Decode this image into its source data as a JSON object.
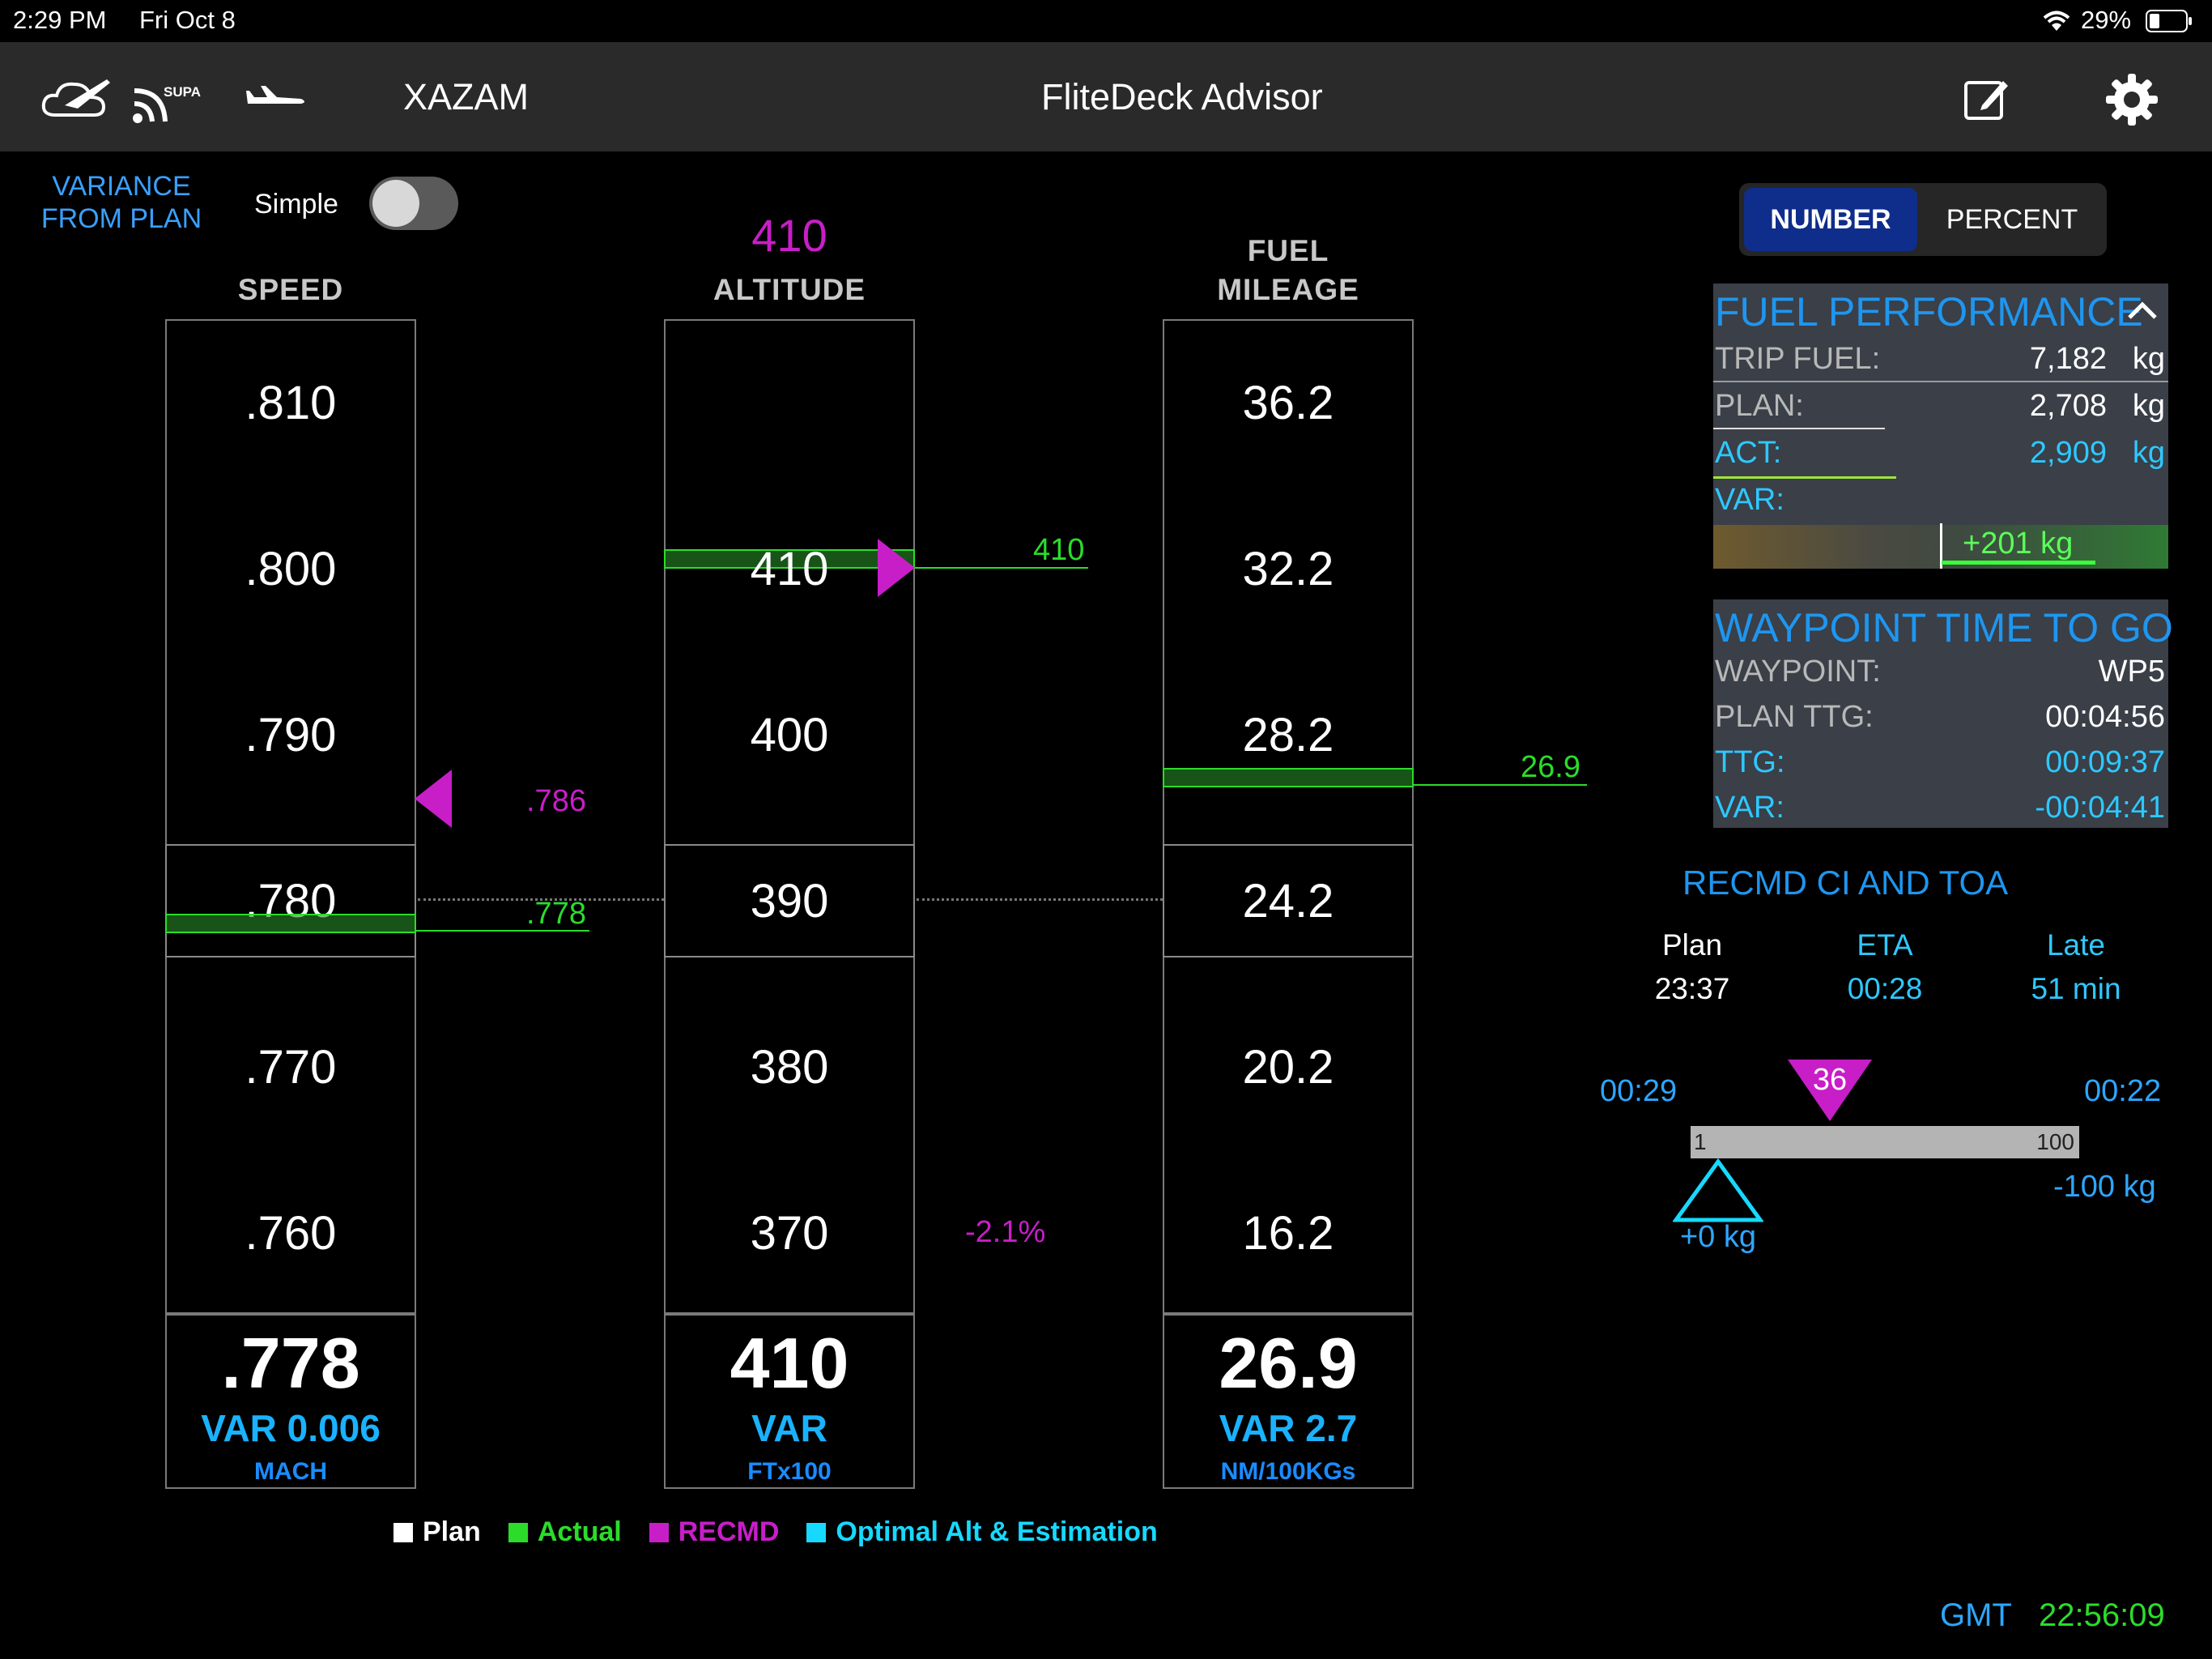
{
  "status_bar": {
    "time": "2:29 PM",
    "date": "Fri Oct 8",
    "battery": "29%"
  },
  "nav": {
    "icons": [
      "weather-cloud-plane-icon",
      "supa-signal-icon",
      "airplane-icon"
    ],
    "supa_label": "SUPA",
    "aircraft": "XAZAM",
    "title": "FliteDeck Advisor",
    "edit_icon": "edit-icon",
    "settings_icon": "gear-icon"
  },
  "variance": {
    "label_line1": "VARIANCE",
    "label_line2": "FROM PLAN",
    "simple_label": "Simple",
    "simple_on": false
  },
  "columns": {
    "speed": {
      "header": "SPEED",
      "ticks": [
        ".810",
        ".800",
        ".790",
        ".780",
        ".770",
        ".760"
      ],
      "recmd_value": ".786",
      "actual_value": ".778",
      "readout": ".778",
      "var": "VAR 0.006",
      "unit": "MACH"
    },
    "altitude": {
      "recmd_top": "410",
      "header": "ALTITUDE",
      "ticks": [
        "410",
        "400",
        "390",
        "380",
        "370"
      ],
      "actual_value": "410",
      "variance_pct": "-2.1%",
      "readout": "410",
      "var": "VAR",
      "unit": "FTx100"
    },
    "fuel": {
      "header_line1": "FUEL",
      "header_line2": "MILEAGE",
      "ticks": [
        "36.2",
        "32.2",
        "28.2",
        "24.2",
        "20.2",
        "16.2"
      ],
      "actual_value": "26.9",
      "readout": "26.9",
      "var": "VAR 2.7",
      "unit": "NM/100KGs"
    }
  },
  "legend": [
    {
      "label": "Plan",
      "color": "#ffffff"
    },
    {
      "label": "Actual",
      "color": "#2bdc2b"
    },
    {
      "label": "RECMD",
      "color": "#c81ec8"
    },
    {
      "label": "Optimal Alt & Estimation",
      "color": "#17d9ff"
    }
  ],
  "mode_toggle": {
    "number": "NUMBER",
    "percent": "PERCENT",
    "selected": "NUMBER"
  },
  "fuel_performance": {
    "title": "FUEL PERFORMANCE",
    "trip_fuel_label": "TRIP FUEL:",
    "trip_fuel": "7,182",
    "trip_fuel_unit": "kg",
    "plan_label": "PLAN:",
    "plan": "2,708",
    "plan_unit": "kg",
    "act_label": "ACT:",
    "act": "2,909",
    "act_unit": "kg",
    "var_label": "VAR:",
    "var": "+201 kg"
  },
  "waypoint_ttg": {
    "title": "WAYPOINT TIME TO GO",
    "waypoint_label": "WAYPOINT:",
    "waypoint": "WP5",
    "plan_ttg_label": "PLAN TTG:",
    "plan_ttg": "00:04:56",
    "ttg_label": "TTG:",
    "ttg": "00:09:37",
    "var_label": "VAR:",
    "var": "-00:04:41"
  },
  "recmd_ci": {
    "title": "RECMD CI AND TOA",
    "plan_label": "Plan",
    "plan": "23:37",
    "eta_label": "ETA",
    "eta": "00:28",
    "late_label": "Late",
    "late": "51 min",
    "left_time": "00:29",
    "right_time": "00:22",
    "ci_value": "36",
    "scale_min": "1",
    "scale_max": "100",
    "fuel_right": "-100 kg",
    "fuel_marker": "+0 kg"
  },
  "gmt": {
    "label": "GMT",
    "time": "22:56:09"
  }
}
